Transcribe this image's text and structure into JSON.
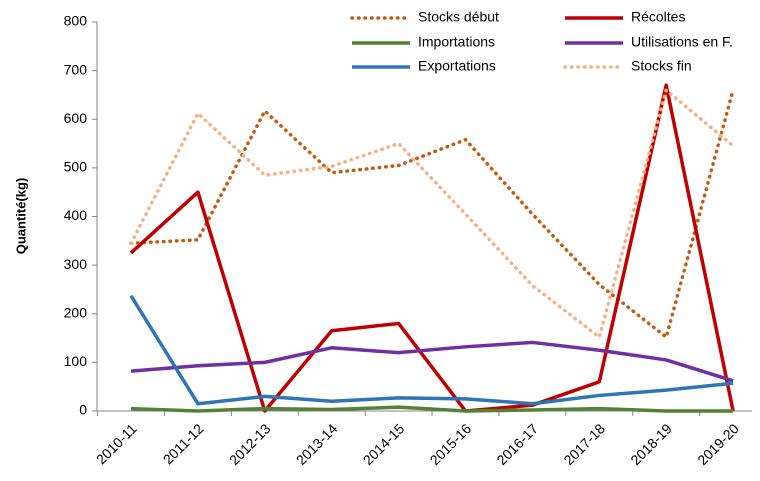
{
  "chart_data": {
    "type": "line",
    "y_label": "Quantité(kg)",
    "categories": [
      "2010-11",
      "2011-12",
      "2012-13",
      "2013-14",
      "2014-15",
      "2015-16",
      "2016-17",
      "2017-18",
      "2018-19",
      "2019-20"
    ],
    "series": [
      {
        "name": "Stocks début",
        "color": "#c55a11",
        "dashed": true,
        "values": [
          345,
          352,
          617,
          490,
          505,
          558,
          405,
          260,
          152,
          660
        ]
      },
      {
        "name": "Récoltes",
        "color": "#c00000",
        "dashed": false,
        "values": [
          325,
          450,
          0,
          165,
          180,
          0,
          12,
          60,
          670,
          0
        ]
      },
      {
        "name": "Importations",
        "color": "#548235",
        "dashed": false,
        "values": [
          5,
          0,
          5,
          3,
          8,
          0,
          2,
          5,
          0,
          0
        ]
      },
      {
        "name": "Utilisations en F.",
        "color": "#7030a0",
        "dashed": false,
        "values": [
          82,
          93,
          100,
          130,
          120,
          132,
          141,
          125,
          105,
          62
        ]
      },
      {
        "name": "Exportations",
        "color": "#2e75b6",
        "dashed": false,
        "values": [
          237,
          15,
          30,
          20,
          27,
          25,
          15,
          32,
          43,
          57
        ]
      },
      {
        "name": "Stocks fin",
        "color": "#f4b183",
        "dashed": true,
        "values": [
          345,
          612,
          485,
          503,
          550,
          405,
          258,
          152,
          660,
          545
        ]
      }
    ],
    "ylim": [
      0,
      800
    ],
    "yticks": [
      0,
      100,
      200,
      300,
      400,
      500,
      600,
      700,
      800
    ],
    "grid": false
  }
}
